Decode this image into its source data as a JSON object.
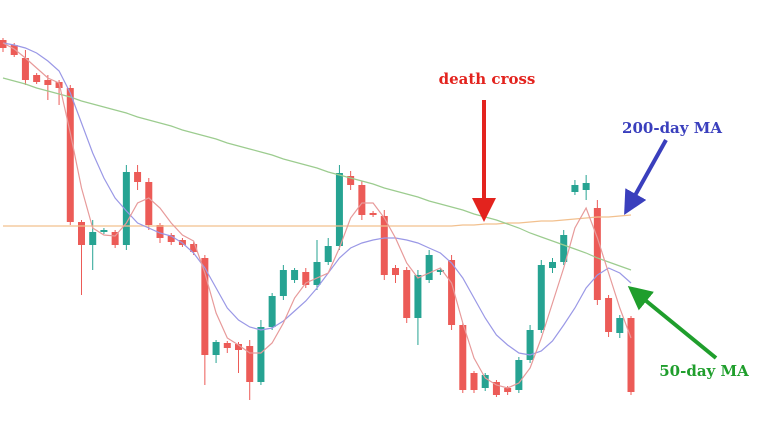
{
  "chart_data": {
    "type": "candlestick",
    "open": [
      393,
      388,
      375,
      358,
      353,
      351,
      345,
      211,
      188,
      201,
      201,
      188,
      261,
      251,
      208,
      198,
      193,
      189,
      175,
      78,
      90,
      89,
      87,
      51,
      106,
      137,
      153,
      161,
      148,
      171,
      187,
      257,
      248,
      220,
      217,
      165,
      163,
      115,
      153,
      161,
      173,
      108,
      60,
      45,
      51,
      45,
      43,
      73,
      103,
      165,
      171,
      241,
      243,
      225,
      135,
      100,
      115
    ],
    "close": [
      385,
      378,
      353,
      351,
      348,
      345,
      211,
      188,
      201,
      203,
      188,
      261,
      251,
      208,
      195,
      191,
      188,
      181,
      78,
      91,
      85,
      83,
      51,
      106,
      137,
      163,
      163,
      148,
      171,
      187,
      260,
      248,
      218,
      218,
      158,
      158,
      115,
      158,
      178,
      163,
      108,
      43,
      43,
      58,
      38,
      41,
      73,
      103,
      168,
      171,
      198,
      248,
      250,
      133,
      101,
      115,
      41
    ],
    "high": [
      395,
      390,
      383,
      360,
      358,
      353,
      348,
      213,
      213,
      205,
      203,
      268,
      268,
      255,
      210,
      200,
      195,
      191,
      178,
      93,
      92,
      91,
      93,
      113,
      140,
      168,
      165,
      165,
      193,
      195,
      268,
      262,
      252,
      222,
      223,
      168,
      166,
      163,
      183,
      165,
      178,
      110,
      62,
      60,
      53,
      47,
      76,
      108,
      173,
      175,
      203,
      253,
      258,
      233,
      138,
      118,
      117
    ],
    "low": [
      381,
      376,
      348,
      349,
      333,
      328,
      208,
      138,
      163,
      199,
      185,
      183,
      243,
      203,
      190,
      188,
      186,
      178,
      48,
      70,
      80,
      60,
      33,
      48,
      103,
      133,
      150,
      145,
      143,
      168,
      183,
      243,
      213,
      216,
      153,
      150,
      110,
      88,
      150,
      158,
      103,
      40,
      40,
      42,
      36,
      38,
      40,
      70,
      100,
      160,
      168,
      238,
      233,
      128,
      96,
      95,
      38
    ],
    "up_color": "#26a392",
    "down_color": "#ec5b57",
    "ylim": [
      0,
      433
    ],
    "lines": [
      {
        "color": "#f2c08e",
        "values": [
          207,
          207,
          207,
          207,
          207,
          207,
          207,
          207,
          207,
          207,
          207,
          207,
          207,
          207,
          207,
          207,
          207,
          207,
          207,
          207,
          207,
          207,
          207,
          207,
          207,
          207,
          207,
          207,
          207,
          207,
          207,
          207,
          207,
          207,
          207,
          207,
          207,
          207,
          207,
          207,
          207,
          208,
          208,
          209,
          209,
          210,
          210,
          211,
          212,
          212,
          213,
          214,
          215,
          216,
          216,
          217,
          218
        ]
      },
      {
        "color": "#9ccc8f",
        "values": [
          355,
          352,
          349,
          345,
          342,
          339,
          336,
          332,
          329,
          326,
          323,
          320,
          316,
          313,
          310,
          307,
          303,
          300,
          297,
          294,
          290,
          287,
          284,
          281,
          278,
          274,
          271,
          268,
          265,
          261,
          258,
          255,
          252,
          249,
          245,
          242,
          239,
          236,
          232,
          229,
          226,
          223,
          219,
          216,
          213,
          209,
          205,
          200,
          196,
          192,
          188,
          184,
          180,
          175,
          171,
          167,
          163
        ]
      },
      {
        "color": "#9a98e6",
        "values": [
          390,
          388,
          385,
          380,
          372,
          362,
          340,
          310,
          280,
          255,
          235,
          222,
          210,
          205,
          200,
          197,
          190,
          180,
          165,
          145,
          125,
          113,
          106,
          103,
          105,
          112,
          122,
          132,
          145,
          160,
          175,
          185,
          190,
          193,
          195,
          195,
          193,
          190,
          185,
          180,
          170,
          155,
          135,
          115,
          98,
          88,
          80,
          78,
          82,
          92,
          108,
          125,
          145,
          158,
          165,
          160,
          150
        ]
      },
      {
        "color": "#e79a9a",
        "values": [
          390,
          384,
          375,
          365,
          355,
          350,
          300,
          245,
          205,
          198,
          197,
          210,
          230,
          235,
          225,
          210,
          198,
          192,
          160,
          120,
          95,
          88,
          80,
          80,
          90,
          110,
          135,
          150,
          155,
          160,
          185,
          215,
          230,
          230,
          215,
          195,
          170,
          155,
          160,
          165,
          150,
          110,
          75,
          55,
          48,
          45,
          50,
          65,
          95,
          130,
          165,
          205,
          225,
          195,
          160,
          125,
          95
        ]
      }
    ],
    "annotations": [
      {
        "text": "death cross",
        "color": "#e3231e"
      },
      {
        "text": "200-day MA",
        "color": "#3a3fbd"
      },
      {
        "text": "50-day MA",
        "color": "#1f9e2c"
      }
    ]
  }
}
